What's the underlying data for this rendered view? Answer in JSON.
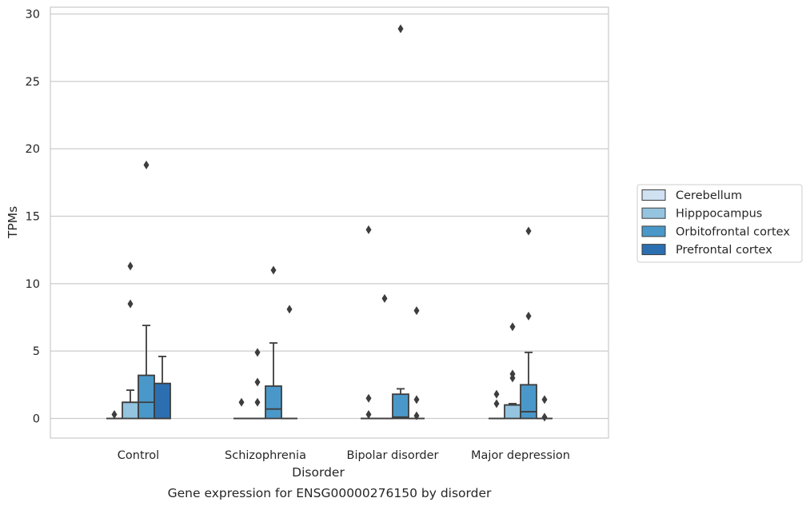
{
  "chart_data": {
    "type": "box",
    "caption": "Gene expression for ENSG00000276150 by disorder",
    "xlabel": "Disorder",
    "ylabel": "TPMs",
    "ylim": [
      -1.4,
      30.4
    ],
    "yticks": [
      0,
      5,
      10,
      15,
      20,
      25,
      30
    ],
    "grid": "horizontal",
    "legend_position": "right",
    "categories": [
      "Control",
      "Schizophrenia",
      "Bipolar disorder",
      "Major depression"
    ],
    "series": [
      {
        "name": "Cerebellum",
        "color": "#d0e1f2",
        "boxes": [
          {
            "q1": 0,
            "median": 0,
            "q3": 0,
            "whisker_low": 0,
            "whisker_high": 0,
            "fliers": [
              0.3
            ]
          },
          {
            "q1": 0,
            "median": 0,
            "q3": 0,
            "whisker_low": 0,
            "whisker_high": 0,
            "fliers": [
              1.2
            ]
          },
          {
            "q1": 0,
            "median": 0,
            "q3": 0,
            "whisker_low": 0,
            "whisker_high": 0,
            "fliers": [
              0.3,
              1.5,
              14.0
            ]
          },
          {
            "q1": 0,
            "median": 0,
            "q3": 0,
            "whisker_low": 0,
            "whisker_high": 0,
            "fliers": [
              1.1,
              1.8
            ]
          }
        ]
      },
      {
        "name": "Hipppocampus",
        "color": "#94c4df",
        "boxes": [
          {
            "q1": 0,
            "median": 1.2,
            "q3": 1.2,
            "whisker_low": 0,
            "whisker_high": 2.1,
            "fliers": [
              8.5,
              11.3
            ]
          },
          {
            "q1": 0,
            "median": 0,
            "q3": 0,
            "whisker_low": 0,
            "whisker_high": 0,
            "fliers": [
              1.2,
              2.7,
              4.9
            ]
          },
          {
            "q1": 0,
            "median": 0,
            "q3": 0,
            "whisker_low": 0,
            "whisker_high": 0,
            "fliers": [
              8.9
            ]
          },
          {
            "q1": 0,
            "median": 1.0,
            "q3": 1.0,
            "whisker_low": 0,
            "whisker_high": 1.1,
            "fliers": [
              3.0,
              3.3,
              6.8
            ]
          }
        ]
      },
      {
        "name": "Orbitofrontal cortex",
        "color": "#4a98c9",
        "boxes": [
          {
            "q1": 0,
            "median": 1.2,
            "q3": 3.2,
            "whisker_low": 0,
            "whisker_high": 6.9,
            "fliers": [
              18.8
            ]
          },
          {
            "q1": 0,
            "median": 0.7,
            "q3": 2.4,
            "whisker_low": 0,
            "whisker_high": 5.6,
            "fliers": [
              11.0
            ]
          },
          {
            "q1": 0,
            "median": 0.1,
            "q3": 1.8,
            "whisker_low": 0,
            "whisker_high": 2.2,
            "fliers": [
              28.9
            ]
          },
          {
            "q1": 0,
            "median": 0.5,
            "q3": 2.5,
            "whisker_low": 0,
            "whisker_high": 4.9,
            "fliers": [
              7.6,
              13.9
            ]
          }
        ]
      },
      {
        "name": "Prefrontal cortex",
        "color": "#2c6fb0",
        "boxes": [
          {
            "q1": 0,
            "median": 0,
            "q3": 2.6,
            "whisker_low": 0,
            "whisker_high": 4.6,
            "fliers": []
          },
          {
            "q1": 0,
            "median": 0,
            "q3": 0,
            "whisker_low": 0,
            "whisker_high": 0,
            "fliers": [
              8.1
            ]
          },
          {
            "q1": 0,
            "median": 0,
            "q3": 0,
            "whisker_low": 0,
            "whisker_high": 0,
            "fliers": [
              0.2,
              1.4,
              8.0
            ]
          },
          {
            "q1": 0,
            "median": 0,
            "q3": 0,
            "whisker_low": 0,
            "whisker_high": 0,
            "fliers": [
              0.1,
              1.4
            ]
          }
        ]
      }
    ]
  }
}
